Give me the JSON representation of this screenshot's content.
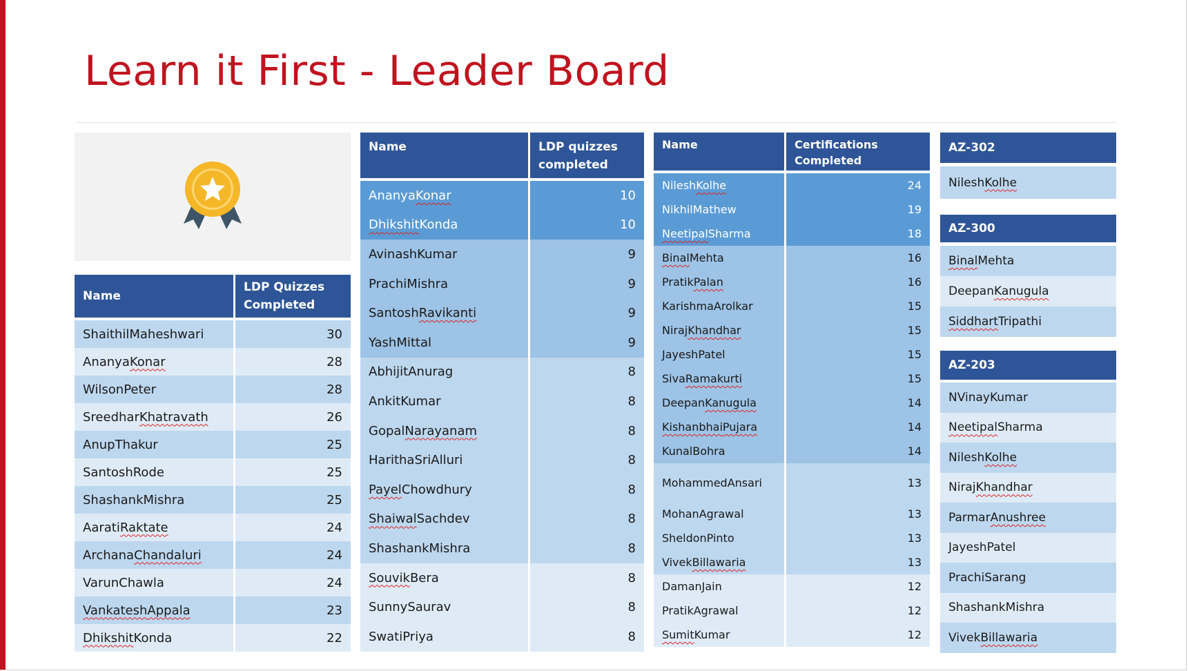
{
  "colors": {
    "accent": "#c0131f",
    "header": "#2e5597",
    "row_dark": "#5b9bd5",
    "row_mid": "#9dc3e6",
    "row_light": "#bdd7ee",
    "row_pale": "#deebf7"
  },
  "title": "Learn it First - Leader Board",
  "badge": {
    "icon": "award-medal-icon"
  },
  "table1": {
    "headers": [
      "Name",
      "LDP Quizzes Completed"
    ],
    "rows": [
      {
        "name": "Shaithil Maheshwari",
        "value": "30"
      },
      {
        "name": "Ananya Konar",
        "value": "28"
      },
      {
        "name": "Wilson Peter",
        "value": "28"
      },
      {
        "name": "Sreedhar Khatravath",
        "value": "26"
      },
      {
        "name": "Anup Thakur",
        "value": "25"
      },
      {
        "name": "Santosh Rode",
        "value": "25"
      },
      {
        "name": "Shashank Mishra",
        "value": "25"
      },
      {
        "name": "Aarati Raktate",
        "value": "24"
      },
      {
        "name": "Archana Chandaluri",
        "value": "24"
      },
      {
        "name": "Varun Chawla",
        "value": "24"
      },
      {
        "name": "Vankatesh Appala",
        "value": "23"
      },
      {
        "name": "Dhikshit Konda",
        "value": "22"
      }
    ]
  },
  "table2": {
    "headers": [
      "Name",
      "LDP quizzes completed"
    ],
    "rows": [
      {
        "name": "Ananya Konar",
        "value": "10"
      },
      {
        "name": "Dhikshit Konda",
        "value": "10"
      },
      {
        "name": "Avinash Kumar",
        "value": "9"
      },
      {
        "name": "Prachi Mishra",
        "value": "9"
      },
      {
        "name": "Santosh Ravikanti",
        "value": "9"
      },
      {
        "name": "Yash Mittal",
        "value": "9"
      },
      {
        "name": "Abhijit Anurag",
        "value": "8"
      },
      {
        "name": "Ankit Kumar",
        "value": "8"
      },
      {
        "name": "Gopal Narayanam",
        "value": "8"
      },
      {
        "name": "Haritha Sri Alluri",
        "value": "8"
      },
      {
        "name": "Payel Chowdhury",
        "value": "8"
      },
      {
        "name": "Shaiwal Sachdev",
        "value": "8"
      },
      {
        "name": "Shashank Mishra",
        "value": "8"
      },
      {
        "name": "Souvik Bera",
        "value": "8"
      },
      {
        "name": "Sunny Saurav",
        "value": "8"
      },
      {
        "name": "Swati Priya",
        "value": "8"
      }
    ]
  },
  "table3": {
    "headers": [
      "Name",
      "Certifications Completed"
    ],
    "rows": [
      {
        "name": "Nilesh Kolhe",
        "value": "24"
      },
      {
        "name": "Nikhil Mathew",
        "value": "19"
      },
      {
        "name": "Neetipal Sharma",
        "value": "18"
      },
      {
        "name": "Binal Mehta",
        "value": "16"
      },
      {
        "name": "Pratik Palan",
        "value": "16"
      },
      {
        "name": "Karishma Arolkar",
        "value": "15"
      },
      {
        "name": "Niraj Khandhar",
        "value": "15"
      },
      {
        "name": "Jayesh Patel",
        "value": "15"
      },
      {
        "name": "Siva Ramakurti",
        "value": "15"
      },
      {
        "name": "Deepan Kanugula",
        "value": "14"
      },
      {
        "name": "Kishanbhai Pujara",
        "value": "14"
      },
      {
        "name": "Kunal Bohra",
        "value": "14"
      },
      {
        "name": "Mohammed Ansari",
        "value": "13"
      },
      {
        "name": "Mohan Agrawal",
        "value": "13"
      },
      {
        "name": "Sheldon Pinto",
        "value": "13"
      },
      {
        "name": "Vivek Billawaria",
        "value": "13"
      },
      {
        "name": "Daman Jain",
        "value": "12"
      },
      {
        "name": "Pratik Agrawal",
        "value": "12"
      },
      {
        "name": "Sumit Kumar",
        "value": "12"
      }
    ]
  },
  "az302": {
    "header": "AZ-302",
    "names": [
      "Nilesh Kolhe"
    ]
  },
  "az300": {
    "header": "AZ-300",
    "names": [
      "Binal Mehta",
      "Deepan Kanugula",
      "Siddhart Tripathi"
    ]
  },
  "az203": {
    "header": "AZ-203",
    "names": [
      "N Vinay Kumar",
      "Neetipal Sharma",
      "Nilesh Kolhe",
      "Niraj Khandhar",
      "Parmar Anushree",
      "Jayesh Patel",
      "Prachi Sarang",
      "Shashank Mishra",
      "Vivek Billawaria"
    ]
  }
}
